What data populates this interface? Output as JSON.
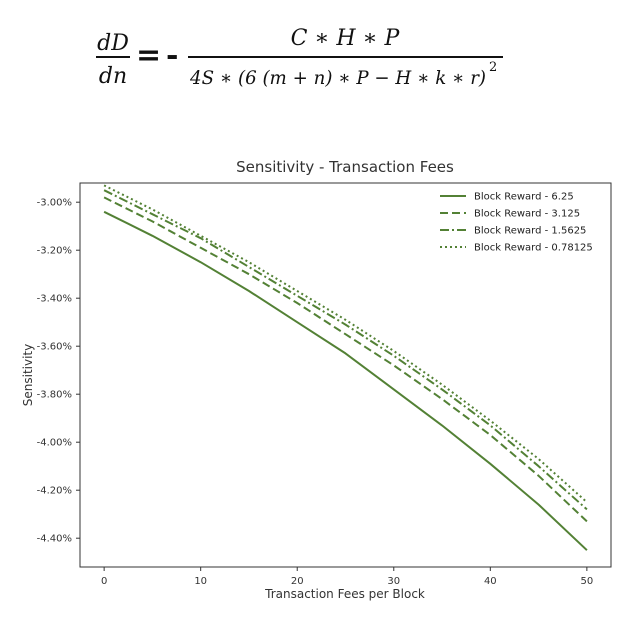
{
  "formula": {
    "lhs_numerator": "dD",
    "lhs_denominator": "dn",
    "equals": "=",
    "minus": "-",
    "rhs_numerator": "C ∗ H ∗ P",
    "rhs_denominator": "4S ∗ (6 (m + n) ∗ P − H ∗ k ∗ r)",
    "exponent": "2"
  },
  "chart_data": {
    "type": "line",
    "title": "Sensitivity - Transaction Fees",
    "xlabel": "Transaction Fees per Block",
    "ylabel": "Sensitivity",
    "xlim": [
      -2.5,
      52.5
    ],
    "ylim": [
      -4.52,
      -2.92
    ],
    "x_ticks": [
      0,
      10,
      20,
      30,
      40,
      50
    ],
    "x_tick_labels": [
      "0",
      "10",
      "20",
      "30",
      "40",
      "50"
    ],
    "y_ticks": [
      -3.0,
      -3.2,
      -3.4,
      -3.6,
      -3.8,
      -4.0,
      -4.2,
      -4.4
    ],
    "y_tick_labels": [
      "-3.00%",
      "-3.20%",
      "-3.40%",
      "-3.60%",
      "-3.80%",
      "-4.00%",
      "-4.20%",
      "-4.40%"
    ],
    "grid": false,
    "legend_position": "top-right",
    "color": "#538135",
    "x": [
      0,
      5,
      10,
      15,
      20,
      25,
      30,
      35,
      40,
      45,
      50
    ],
    "series": [
      {
        "name": "Block Reward - 6.25",
        "dash": "solid",
        "values": [
          -3.04,
          -3.14,
          -3.25,
          -3.37,
          -3.5,
          -3.63,
          -3.78,
          -3.93,
          -4.09,
          -4.26,
          -4.45
        ]
      },
      {
        "name": "Block Reward - 3.125",
        "dash": "dashed",
        "values": [
          -2.98,
          -3.08,
          -3.19,
          -3.3,
          -3.42,
          -3.55,
          -3.68,
          -3.82,
          -3.97,
          -4.14,
          -4.33
        ]
      },
      {
        "name": "Block Reward - 1.5625",
        "dash": "dashdot",
        "values": [
          -2.95,
          -3.05,
          -3.15,
          -3.27,
          -3.39,
          -3.51,
          -3.64,
          -3.78,
          -3.93,
          -4.1,
          -4.28
        ]
      },
      {
        "name": "Block Reward - 0.78125",
        "dash": "dotted",
        "values": [
          -2.93,
          -3.03,
          -3.14,
          -3.25,
          -3.37,
          -3.49,
          -3.62,
          -3.76,
          -3.91,
          -4.07,
          -4.25
        ]
      }
    ]
  }
}
